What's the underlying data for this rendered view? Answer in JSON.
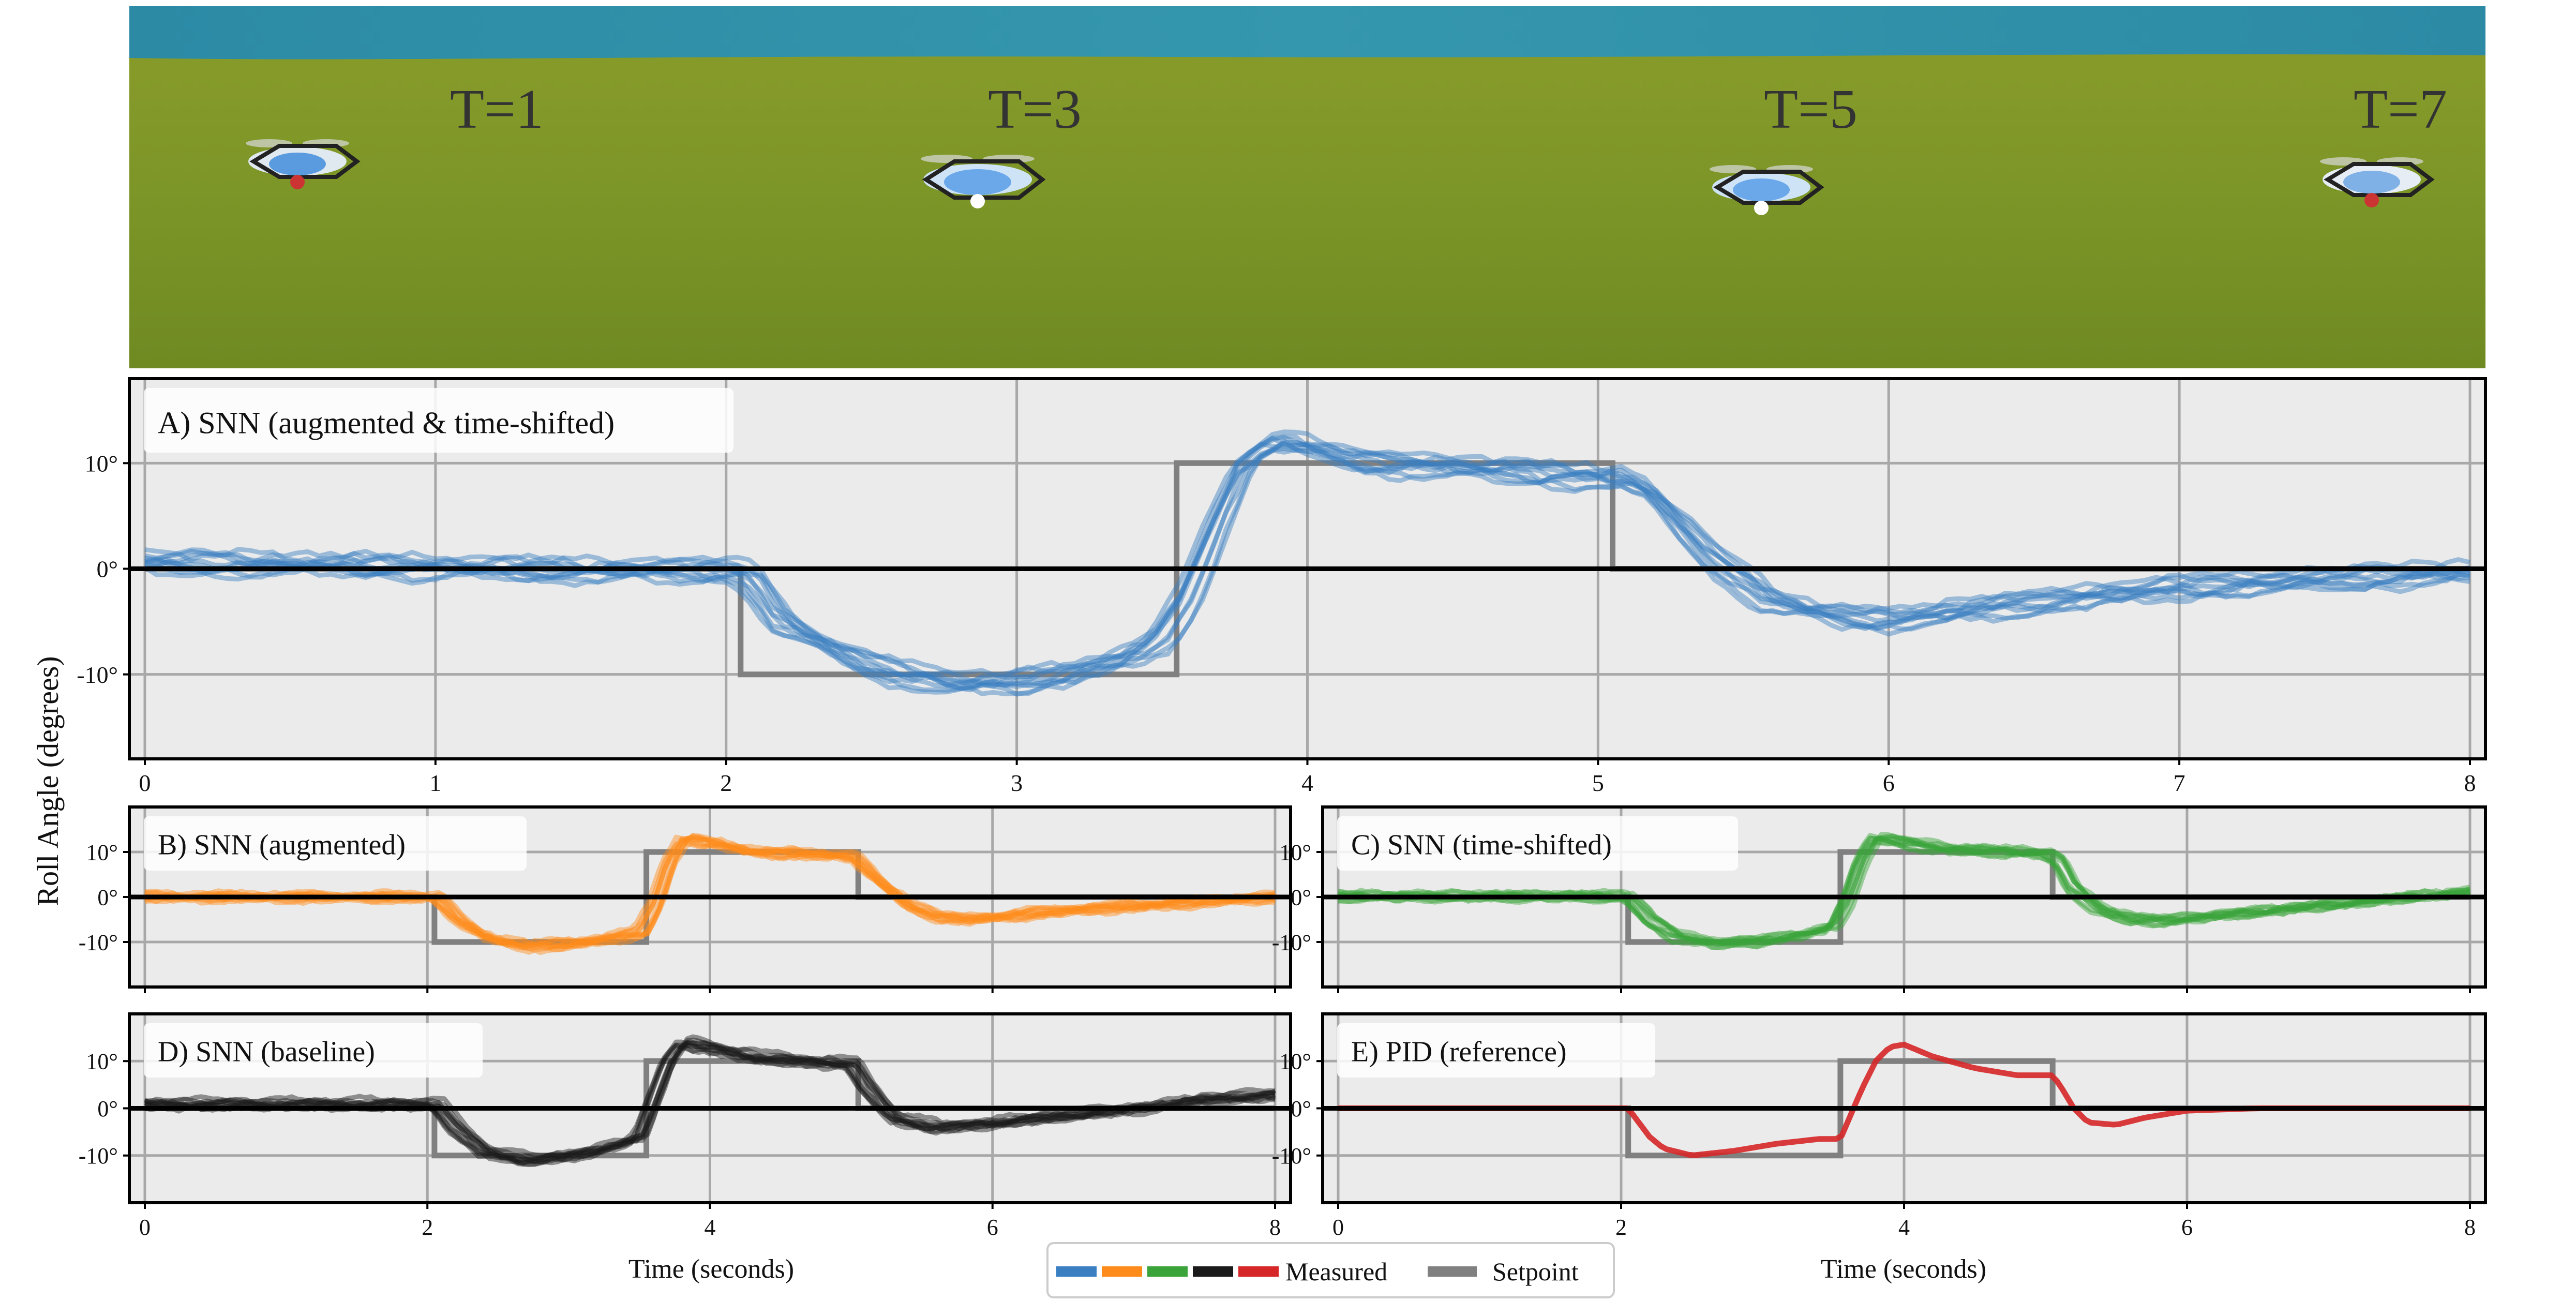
{
  "photo": {
    "labels": [
      "T=1",
      "T=3",
      "T=5",
      "T=7"
    ],
    "colors": {
      "sky": "#2f8fa8",
      "grass": "#7f9a2b",
      "grass_dark": "#6b8421"
    }
  },
  "y_axis_label": "Roll Angle (degrees)",
  "x_axis_label": "Time (seconds)",
  "colors": {
    "panel_bg": "#ebebeb",
    "grid": "#a8a8a8",
    "setpoint": "#808080",
    "zero_line": "#000000",
    "blue": "#3a7fc1",
    "orange": "#ff8c1a",
    "green": "#3aa33a",
    "black": "#1a1a1a",
    "red": "#d62728"
  },
  "legend": {
    "measured_label": "Measured",
    "setpoint_label": "Setpoint",
    "measured_colors": [
      "#3a7fc1",
      "#ff8c1a",
      "#3aa33a",
      "#1a1a1a",
      "#d62728"
    ]
  },
  "chart_data": [
    {
      "type": "line",
      "panel": "A",
      "title": "A) SNN (augmented & time-shifted)",
      "color": "#3a7fc1",
      "xlim": [
        0,
        8
      ],
      "ylim": [
        -18,
        18
      ],
      "xticks": [
        0,
        1,
        2,
        3,
        4,
        5,
        6,
        7,
        8
      ],
      "yticks": [
        -10,
        0,
        10
      ],
      "ytick_labels": [
        "-10°",
        "0°",
        "10°"
      ],
      "runs": 10,
      "setpoint": {
        "x": [
          0,
          2.05,
          2.05,
          3.55,
          3.55,
          5.05,
          5.05,
          8
        ],
        "y": [
          0,
          0,
          -10,
          -10,
          10,
          10,
          0,
          0
        ]
      },
      "measured_mean": {
        "x": [
          0,
          0.5,
          1.0,
          1.5,
          2.05,
          2.1,
          2.2,
          2.4,
          2.6,
          2.8,
          3.0,
          3.2,
          3.4,
          3.5,
          3.6,
          3.7,
          3.8,
          3.9,
          4.0,
          4.2,
          4.5,
          4.8,
          5.0,
          5.1,
          5.2,
          5.4,
          5.6,
          5.8,
          6.0,
          6.3,
          6.6,
          7.0,
          7.5,
          8.0
        ],
        "y": [
          0.5,
          0.3,
          0.0,
          -0.3,
          -0.3,
          -1,
          -5,
          -8,
          -10,
          -11,
          -11,
          -10,
          -8.5,
          -7,
          -3,
          4,
          10,
          12,
          11.5,
          10,
          9.5,
          9,
          8.5,
          8.5,
          7,
          1,
          -3,
          -4.5,
          -5,
          -4,
          -3,
          -2,
          -1.2,
          -0.5
        ]
      }
    },
    {
      "type": "line",
      "panel": "B",
      "title": "B) SNN (augmented)",
      "color": "#ff8c1a",
      "xlim": [
        0,
        8
      ],
      "ylim": [
        -20,
        20
      ],
      "xticks": [
        0,
        2,
        4,
        6,
        8
      ],
      "yticks": [
        -10,
        0,
        10
      ],
      "ytick_labels": [
        "-10°",
        "0°",
        "10°"
      ],
      "runs": 10,
      "setpoint": {
        "x": [
          0,
          2.05,
          2.05,
          3.55,
          3.55,
          5.05,
          5.05,
          8
        ],
        "y": [
          0,
          0,
          -10,
          -10,
          10,
          10,
          0,
          0
        ]
      },
      "measured_mean": {
        "x": [
          0,
          1.0,
          2.05,
          2.2,
          2.4,
          2.7,
          3.0,
          3.3,
          3.5,
          3.6,
          3.7,
          3.8,
          4.0,
          4.3,
          4.7,
          5.0,
          5.2,
          5.4,
          5.6,
          5.8,
          6.0,
          6.5,
          7.0,
          7.5,
          8.0
        ],
        "y": [
          0,
          0,
          0,
          -5,
          -9,
          -11,
          -10.5,
          -9,
          -8,
          -2,
          8,
          13,
          12,
          10,
          9.5,
          9,
          3,
          -2,
          -4.5,
          -5,
          -4.5,
          -3,
          -2,
          -1,
          0
        ]
      }
    },
    {
      "type": "line",
      "panel": "C",
      "title": "C) SNN (time-shifted)",
      "color": "#3aa33a",
      "xlim": [
        0,
        8
      ],
      "ylim": [
        -20,
        20
      ],
      "xticks": [
        0,
        2,
        4,
        6,
        8
      ],
      "yticks": [
        -10,
        0,
        10
      ],
      "ytick_labels": [
        "-10°",
        "0°",
        "10°"
      ],
      "runs": 10,
      "setpoint": {
        "x": [
          0,
          2.05,
          2.05,
          3.55,
          3.55,
          5.05,
          5.05,
          8
        ],
        "y": [
          0,
          0,
          -10,
          -10,
          10,
          10,
          0,
          0
        ]
      },
      "measured_mean": {
        "x": [
          0,
          1.0,
          2.05,
          2.2,
          2.4,
          2.7,
          3.0,
          3.3,
          3.5,
          3.6,
          3.7,
          3.8,
          4.0,
          4.3,
          4.7,
          5.0,
          5.1,
          5.2,
          5.4,
          5.6,
          5.8,
          6.0,
          6.5,
          7.0,
          7.5,
          8.0
        ],
        "y": [
          0,
          0,
          0,
          -5,
          -9,
          -10.5,
          -10,
          -8.5,
          -7,
          -1,
          8,
          13,
          12,
          10.5,
          10,
          9.5,
          8,
          2,
          -3,
          -5,
          -5.5,
          -5,
          -3.5,
          -2,
          -0.5,
          1
        ]
      }
    },
    {
      "type": "line",
      "panel": "D",
      "title": "D) SNN (baseline)",
      "color": "#1a1a1a",
      "xlim": [
        0,
        8
      ],
      "ylim": [
        -20,
        20
      ],
      "xticks": [
        0,
        2,
        4,
        6,
        8
      ],
      "yticks": [
        -10,
        0,
        10
      ],
      "ytick_labels": [
        "-10°",
        "0°",
        "10°"
      ],
      "runs": 10,
      "setpoint": {
        "x": [
          0,
          2.05,
          2.05,
          3.55,
          3.55,
          5.05,
          5.05,
          8
        ],
        "y": [
          0,
          0,
          -10,
          -10,
          10,
          10,
          0,
          0
        ]
      },
      "measured_mean": {
        "x": [
          0,
          1.0,
          2.05,
          2.2,
          2.4,
          2.7,
          3.0,
          3.3,
          3.5,
          3.6,
          3.7,
          3.8,
          4.0,
          4.3,
          4.7,
          5.0,
          5.1,
          5.3,
          5.6,
          6.0,
          6.5,
          7.0,
          7.5,
          8.0
        ],
        "y": [
          1,
          1,
          1,
          -4,
          -9,
          -11,
          -10,
          -8,
          -6,
          2,
          10,
          14,
          13,
          11,
          10,
          9.5,
          5,
          -2,
          -4,
          -3,
          -1.5,
          0,
          2,
          3
        ]
      }
    },
    {
      "type": "line",
      "panel": "E",
      "title": "E) PID (reference)",
      "color": "#d62728",
      "xlim": [
        0,
        8
      ],
      "ylim": [
        -20,
        20
      ],
      "xticks": [
        0,
        2,
        4,
        6,
        8
      ],
      "yticks": [
        -10,
        0,
        10
      ],
      "ytick_labels": [
        "-10°",
        "0°",
        "10°"
      ],
      "runs": 1,
      "setpoint": {
        "x": [
          0,
          2.05,
          2.05,
          3.55,
          3.55,
          5.05,
          5.05,
          8
        ],
        "y": [
          0,
          0,
          -10,
          -10,
          10,
          10,
          0,
          0
        ]
      },
      "measured_mean": {
        "x": [
          0,
          2.05,
          2.1,
          2.2,
          2.3,
          2.5,
          2.8,
          3.1,
          3.4,
          3.55,
          3.6,
          3.7,
          3.8,
          3.9,
          4.0,
          4.2,
          4.5,
          4.8,
          5.05,
          5.1,
          5.2,
          5.3,
          5.5,
          5.7,
          6.0,
          6.5,
          8.0
        ],
        "y": [
          0,
          0,
          -2,
          -6,
          -8.5,
          -10,
          -9,
          -7.5,
          -6.5,
          -6.5,
          -3,
          4,
          10,
          13,
          13.5,
          11,
          8.5,
          7,
          7,
          5,
          0,
          -3,
          -3.5,
          -2,
          -0.5,
          0,
          0
        ]
      }
    }
  ]
}
